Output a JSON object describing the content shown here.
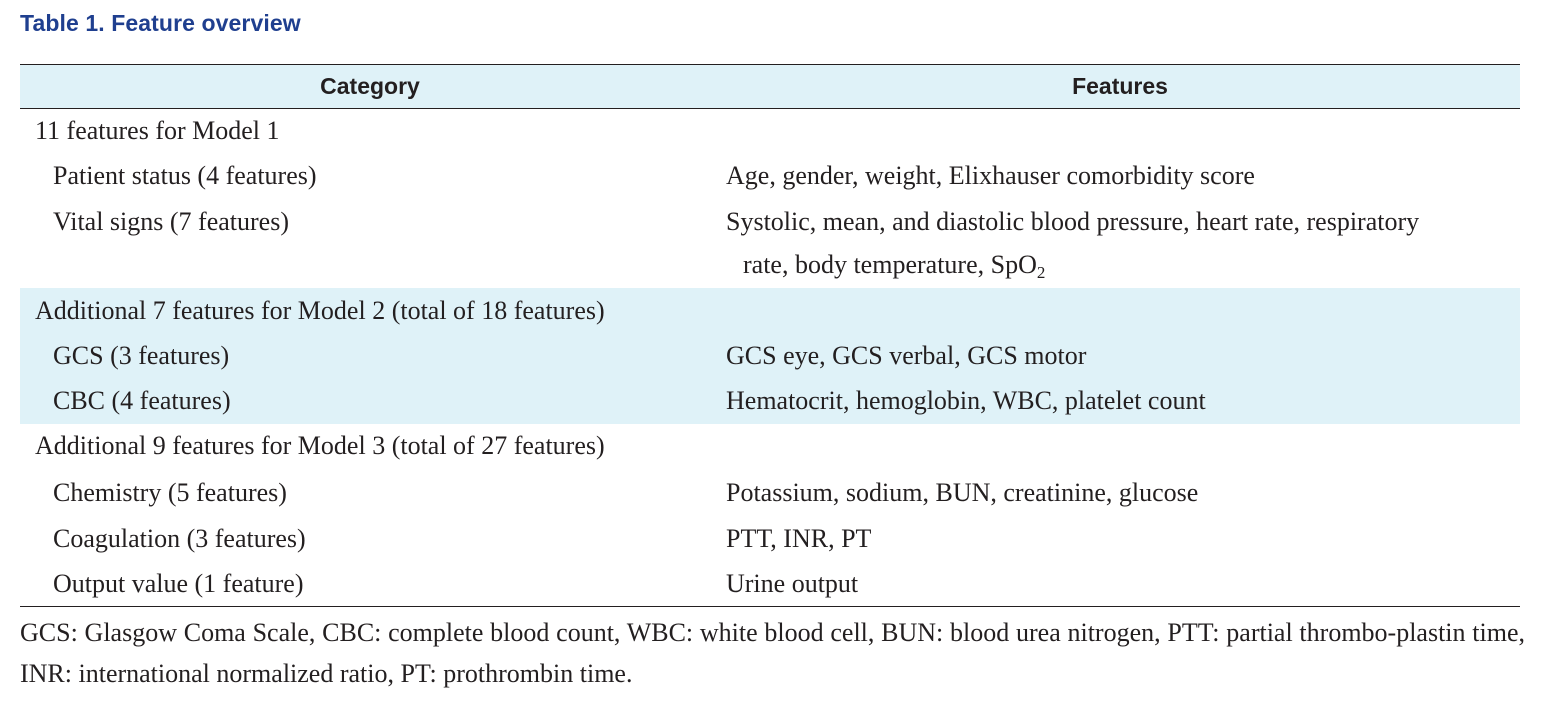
{
  "table": {
    "title": "Table 1. Feature overview",
    "headers": {
      "category": "Category",
      "features": "Features"
    },
    "groups": [
      {
        "heading": "11 features for Model 1",
        "rows": [
          {
            "category": "Patient status (4 features)",
            "features": "Age, gender, weight, Elixhauser comorbidity score"
          },
          {
            "category": "Vital signs (7 features)",
            "features": "Systolic, mean, and diastolic blood pressure, heart rate, respiratory",
            "features_cont": "rate, body temperature, SpO",
            "features_sub": "2"
          }
        ]
      },
      {
        "heading": "Additional 7 features for Model 2 (total of 18 features)",
        "rows": [
          {
            "category": "GCS (3 features)",
            "features": "GCS eye, GCS verbal, GCS motor"
          },
          {
            "category": "CBC (4 features)",
            "features": "Hematocrit, hemoglobin, WBC, platelet count"
          }
        ]
      },
      {
        "heading": "Additional 9 features for Model 3 (total of 27 features)",
        "rows": [
          {
            "category": "Chemistry (5 features)",
            "features": "Potassium, sodium, BUN, creatinine, glucose"
          },
          {
            "category": "Coagulation (3 features)",
            "features": "PTT, INR, PT"
          },
          {
            "category": "Output value (1 feature)",
            "features": "Urine output"
          }
        ]
      }
    ],
    "footnote": "GCS: Glasgow Coma Scale, CBC: complete blood count, WBC: white blood cell, BUN: blood urea nitrogen, PTT: partial thrombo-plastin time, INR: international normalized ratio, PT: prothrombin time.",
    "colors": {
      "title": "#1f3f8f",
      "shade": "#dff2f8",
      "text": "#231f20"
    }
  }
}
